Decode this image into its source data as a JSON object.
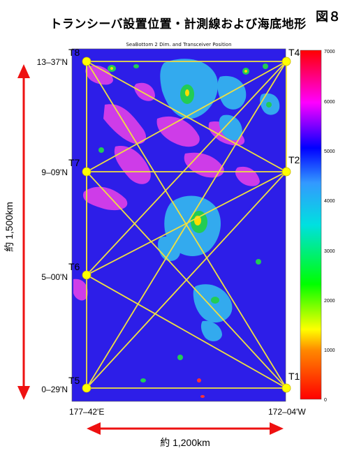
{
  "header": {
    "title": "トランシーバ設置位置・計測線および海底地形",
    "figure_number": "図８"
  },
  "map": {
    "title": "SeaBottom 2 Dim. and Transceiver Position",
    "stations": [
      {
        "id": "T8",
        "label": "T8"
      },
      {
        "id": "T4",
        "label": "T4"
      },
      {
        "id": "T7",
        "label": "T7"
      },
      {
        "id": "T2",
        "label": "T2"
      },
      {
        "id": "T6",
        "label": "T6"
      },
      {
        "id": "T5",
        "label": "T5"
      },
      {
        "id": "T1",
        "label": "T1"
      }
    ],
    "latitude_labels": [
      "13‒37'N",
      "9‒09'N",
      "5‒00'N",
      "0‒29'N"
    ],
    "longitude_labels": [
      "177‒42'E",
      "172‒04'W"
    ],
    "vertical_distance": "約 1,500km",
    "horizontal_distance": "約 1,200km",
    "measurement_lines": [
      [
        "T8",
        "T4"
      ],
      [
        "T8",
        "T7"
      ],
      [
        "T8",
        "T2"
      ],
      [
        "T8",
        "T6"
      ],
      [
        "T8",
        "T1"
      ],
      [
        "T4",
        "T7"
      ],
      [
        "T4",
        "T2"
      ],
      [
        "T4",
        "T6"
      ],
      [
        "T4",
        "T5"
      ],
      [
        "T7",
        "T2"
      ],
      [
        "T7",
        "T6"
      ],
      [
        "T7",
        "T1"
      ],
      [
        "T2",
        "T6"
      ],
      [
        "T2",
        "T5"
      ],
      [
        "T6",
        "T5"
      ],
      [
        "T6",
        "T1"
      ],
      [
        "T5",
        "T1"
      ]
    ],
    "line_color": "#f0e040",
    "station_color": "#ffff00"
  },
  "colorbar": {
    "ticks": [
      "7000",
      "6000",
      "5000",
      "4000",
      "3000",
      "2000",
      "1000",
      "0"
    ],
    "min": 0,
    "max": 7000,
    "colors": [
      "#ff0000",
      "#ffff00",
      "#00ff00",
      "#00e0ff",
      "#0000ff",
      "#ff00ff",
      "#ff0000"
    ]
  },
  "colors": {
    "deep_ocean": "#2d1ee8",
    "arrow_red": "#ee1111"
  }
}
